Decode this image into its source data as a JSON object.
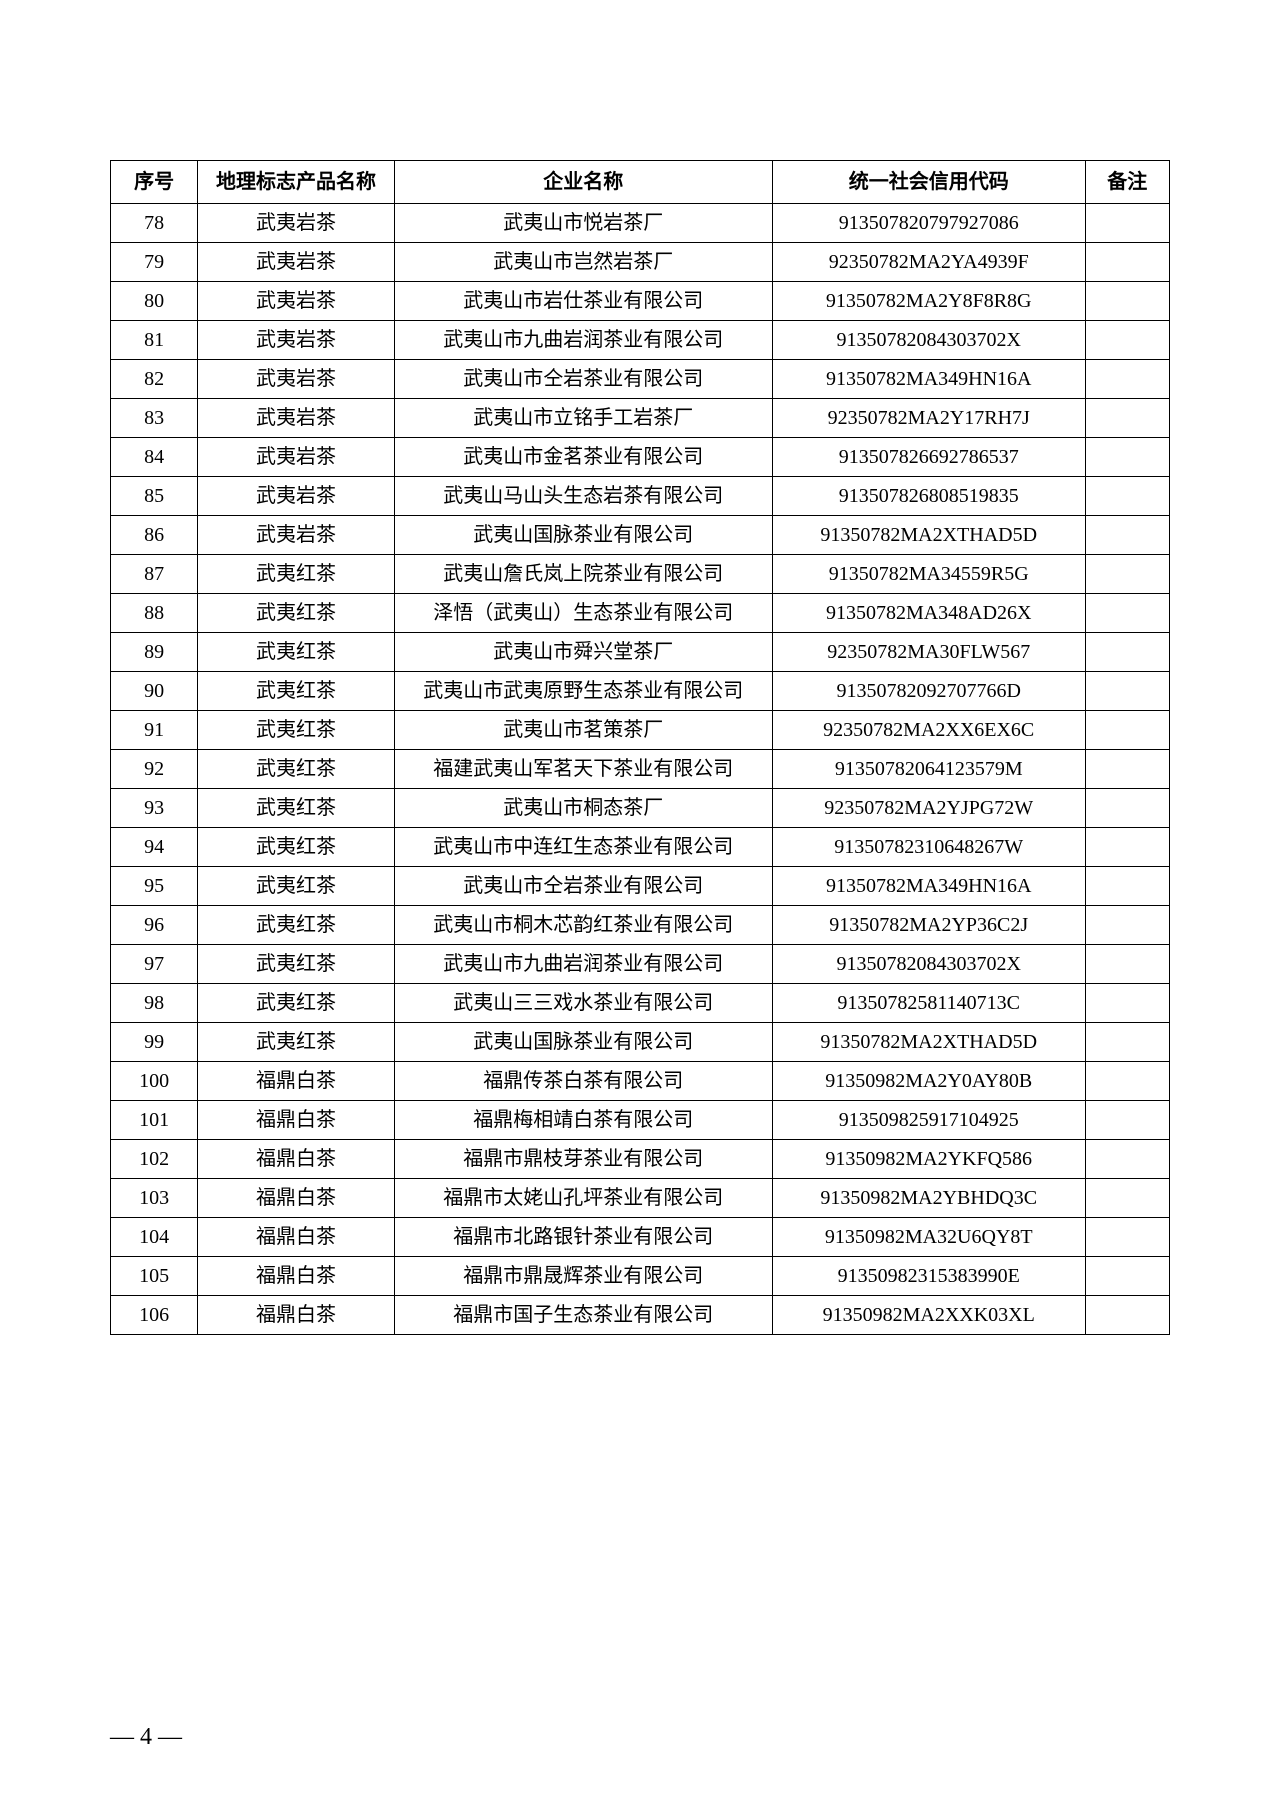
{
  "table": {
    "headers": {
      "seq": "序号",
      "product": "地理标志产品名称",
      "company": "企业名称",
      "code": "统一社会信用代码",
      "note": "备注"
    },
    "rows": [
      {
        "seq": "78",
        "product": "武夷岩茶",
        "company": "武夷山市悦岩茶厂",
        "code": "913507820797927086",
        "note": ""
      },
      {
        "seq": "79",
        "product": "武夷岩茶",
        "company": "武夷山市岂然岩茶厂",
        "code": "92350782MA2YA4939F",
        "note": ""
      },
      {
        "seq": "80",
        "product": "武夷岩茶",
        "company": "武夷山市岩仕茶业有限公司",
        "code": "91350782MA2Y8F8R8G",
        "note": ""
      },
      {
        "seq": "81",
        "product": "武夷岩茶",
        "company": "武夷山市九曲岩润茶业有限公司",
        "code": "91350782084303702X",
        "note": ""
      },
      {
        "seq": "82",
        "product": "武夷岩茶",
        "company": "武夷山市仝岩茶业有限公司",
        "code": "91350782MA349HN16A",
        "note": ""
      },
      {
        "seq": "83",
        "product": "武夷岩茶",
        "company": "武夷山市立铭手工岩茶厂",
        "code": "92350782MA2Y17RH7J",
        "note": ""
      },
      {
        "seq": "84",
        "product": "武夷岩茶",
        "company": "武夷山市金茗茶业有限公司",
        "code": "913507826692786537",
        "note": ""
      },
      {
        "seq": "85",
        "product": "武夷岩茶",
        "company": "武夷山马山头生态岩茶有限公司",
        "code": "913507826808519835",
        "note": ""
      },
      {
        "seq": "86",
        "product": "武夷岩茶",
        "company": "武夷山国脉茶业有限公司",
        "code": "91350782MA2XTHAD5D",
        "note": ""
      },
      {
        "seq": "87",
        "product": "武夷红茶",
        "company": "武夷山詹氏岚上院茶业有限公司",
        "code": "91350782MA34559R5G",
        "note": ""
      },
      {
        "seq": "88",
        "product": "武夷红茶",
        "company": "泽悟（武夷山）生态茶业有限公司",
        "code": "91350782MA348AD26X",
        "note": ""
      },
      {
        "seq": "89",
        "product": "武夷红茶",
        "company": "武夷山市舜兴堂茶厂",
        "code": "92350782MA30FLW567",
        "note": ""
      },
      {
        "seq": "90",
        "product": "武夷红茶",
        "company": "武夷山市武夷原野生态茶业有限公司",
        "code": "91350782092707766D",
        "note": ""
      },
      {
        "seq": "91",
        "product": "武夷红茶",
        "company": "武夷山市茗策茶厂",
        "code": "92350782MA2XX6EX6C",
        "note": ""
      },
      {
        "seq": "92",
        "product": "武夷红茶",
        "company": "福建武夷山军茗天下茶业有限公司",
        "code": "91350782064123579M",
        "note": ""
      },
      {
        "seq": "93",
        "product": "武夷红茶",
        "company": "武夷山市桐态茶厂",
        "code": "92350782MA2YJPG72W",
        "note": ""
      },
      {
        "seq": "94",
        "product": "武夷红茶",
        "company": "武夷山市中连红生态茶业有限公司",
        "code": "91350782310648267W",
        "note": ""
      },
      {
        "seq": "95",
        "product": "武夷红茶",
        "company": "武夷山市仝岩茶业有限公司",
        "code": "91350782MA349HN16A",
        "note": ""
      },
      {
        "seq": "96",
        "product": "武夷红茶",
        "company": "武夷山市桐木芯韵红茶业有限公司",
        "code": "91350782MA2YP36C2J",
        "note": ""
      },
      {
        "seq": "97",
        "product": "武夷红茶",
        "company": "武夷山市九曲岩润茶业有限公司",
        "code": "91350782084303702X",
        "note": ""
      },
      {
        "seq": "98",
        "product": "武夷红茶",
        "company": "武夷山三三戏水茶业有限公司",
        "code": "91350782581140713C",
        "note": ""
      },
      {
        "seq": "99",
        "product": "武夷红茶",
        "company": "武夷山国脉茶业有限公司",
        "code": "91350782MA2XTHAD5D",
        "note": ""
      },
      {
        "seq": "100",
        "product": "福鼎白茶",
        "company": "福鼎传茶白茶有限公司",
        "code": "91350982MA2Y0AY80B",
        "note": ""
      },
      {
        "seq": "101",
        "product": "福鼎白茶",
        "company": "福鼎梅相靖白茶有限公司",
        "code": "913509825917104925",
        "note": ""
      },
      {
        "seq": "102",
        "product": "福鼎白茶",
        "company": "福鼎市鼎枝芽茶业有限公司",
        "code": "91350982MA2YKFQ586",
        "note": ""
      },
      {
        "seq": "103",
        "product": "福鼎白茶",
        "company": "福鼎市太姥山孔坪茶业有限公司",
        "code": "91350982MA2YBHDQ3C",
        "note": ""
      },
      {
        "seq": "104",
        "product": "福鼎白茶",
        "company": "福鼎市北路银针茶业有限公司",
        "code": "91350982MA32U6QY8T",
        "note": ""
      },
      {
        "seq": "105",
        "product": "福鼎白茶",
        "company": "福鼎市鼎晟辉茶业有限公司",
        "code": "91350982315383990E",
        "note": ""
      },
      {
        "seq": "106",
        "product": "福鼎白茶",
        "company": "福鼎市国子生态茶业有限公司",
        "code": "91350982MA2XXK03XL",
        "note": ""
      }
    ]
  },
  "page_number": "— 4 —"
}
